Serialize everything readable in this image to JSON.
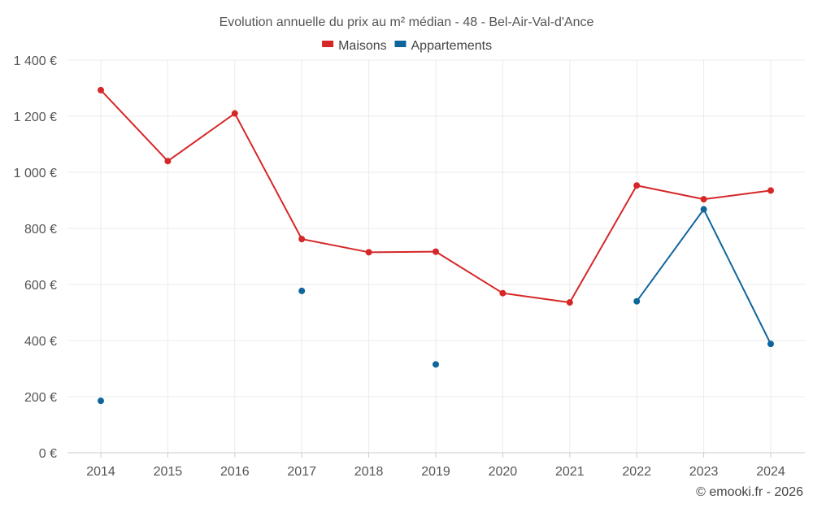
{
  "chart_data": {
    "type": "line",
    "title": "Evolution annuelle du prix au m² médian - 48 - Bel-Air-Val-d'Ance",
    "xlabel": "",
    "ylabel": "",
    "categories": [
      "2014",
      "2015",
      "2016",
      "2017",
      "2018",
      "2019",
      "2020",
      "2021",
      "2022",
      "2023",
      "2024"
    ],
    "ylim": [
      0,
      1400
    ],
    "yticks": [
      0,
      200,
      400,
      600,
      800,
      1000,
      1200,
      1400
    ],
    "ytick_labels": [
      "0 €",
      "200 €",
      "400 €",
      "600 €",
      "800 €",
      "1 000 €",
      "1 200 €",
      "1 400 €"
    ],
    "grid": true,
    "legend_position": "top-center",
    "series": [
      {
        "name": "Maisons",
        "color": "#d62728",
        "values": [
          1293,
          1040,
          1210,
          762,
          715,
          717,
          569,
          536,
          953,
          904,
          935
        ]
      },
      {
        "name": "Appartements",
        "color": "#0f649c",
        "values": [
          185,
          null,
          null,
          577,
          null,
          315,
          null,
          null,
          540,
          868,
          388
        ]
      }
    ]
  },
  "credit": "© emooki.fr - 2026"
}
